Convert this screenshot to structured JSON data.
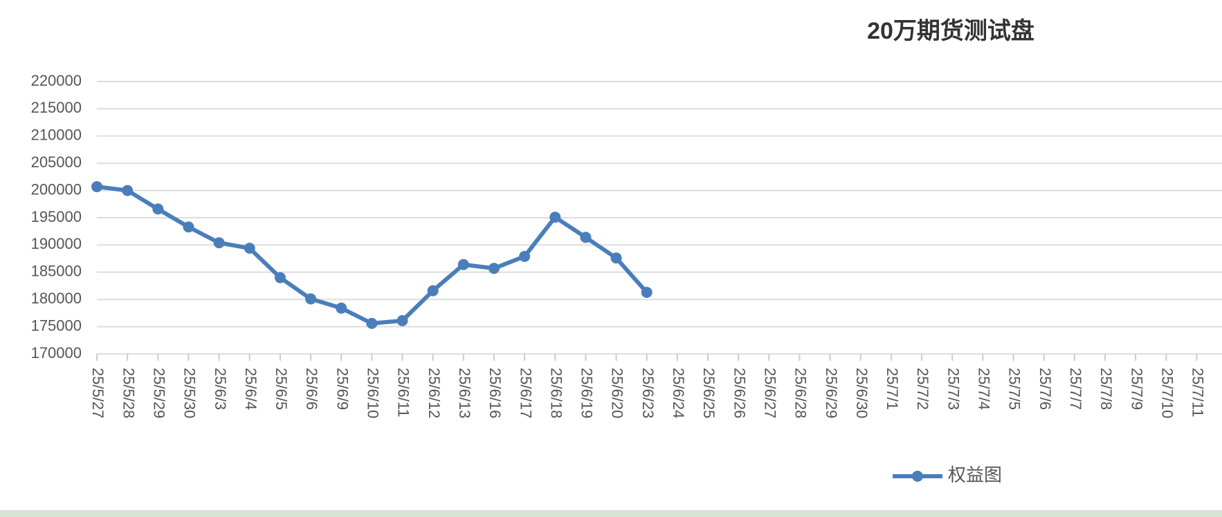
{
  "chart_data": {
    "type": "line",
    "title": "20万期货测试盘",
    "categories": [
      "25/5/27",
      "25/5/28",
      "25/5/29",
      "25/5/30",
      "25/6/3",
      "25/6/4",
      "25/6/5",
      "25/6/6",
      "25/6/9",
      "25/6/10",
      "25/6/11",
      "25/6/12",
      "25/6/13",
      "25/6/16",
      "25/6/17",
      "25/6/18",
      "25/6/19",
      "25/6/20",
      "25/6/23",
      "25/6/24",
      "25/6/25",
      "25/6/26",
      "25/6/27",
      "25/6/28",
      "25/6/29",
      "25/6/30",
      "25/7/1",
      "25/7/2",
      "25/7/3",
      "25/7/4",
      "25/7/5",
      "25/7/6",
      "25/7/7",
      "25/7/8",
      "25/7/9",
      "25/7/10",
      "25/7/11"
    ],
    "series": [
      {
        "name": "权益图",
        "color": "#4a7ebb",
        "values": [
          200700,
          200000,
          196600,
          193300,
          190400,
          189400,
          184000,
          180100,
          178400,
          175600,
          176100,
          181600,
          186400,
          185700,
          187900,
          195100,
          191400,
          187600,
          181300,
          null,
          null,
          null,
          null,
          null,
          null,
          null,
          null,
          null,
          null,
          null,
          null,
          null,
          null,
          null,
          null,
          null,
          null
        ]
      }
    ],
    "ylim": [
      170000,
      220000
    ],
    "yticks": [
      170000,
      175000,
      180000,
      185000,
      190000,
      195000,
      200000,
      205000,
      210000,
      215000,
      220000
    ],
    "grid": true,
    "legend": "bottom"
  }
}
